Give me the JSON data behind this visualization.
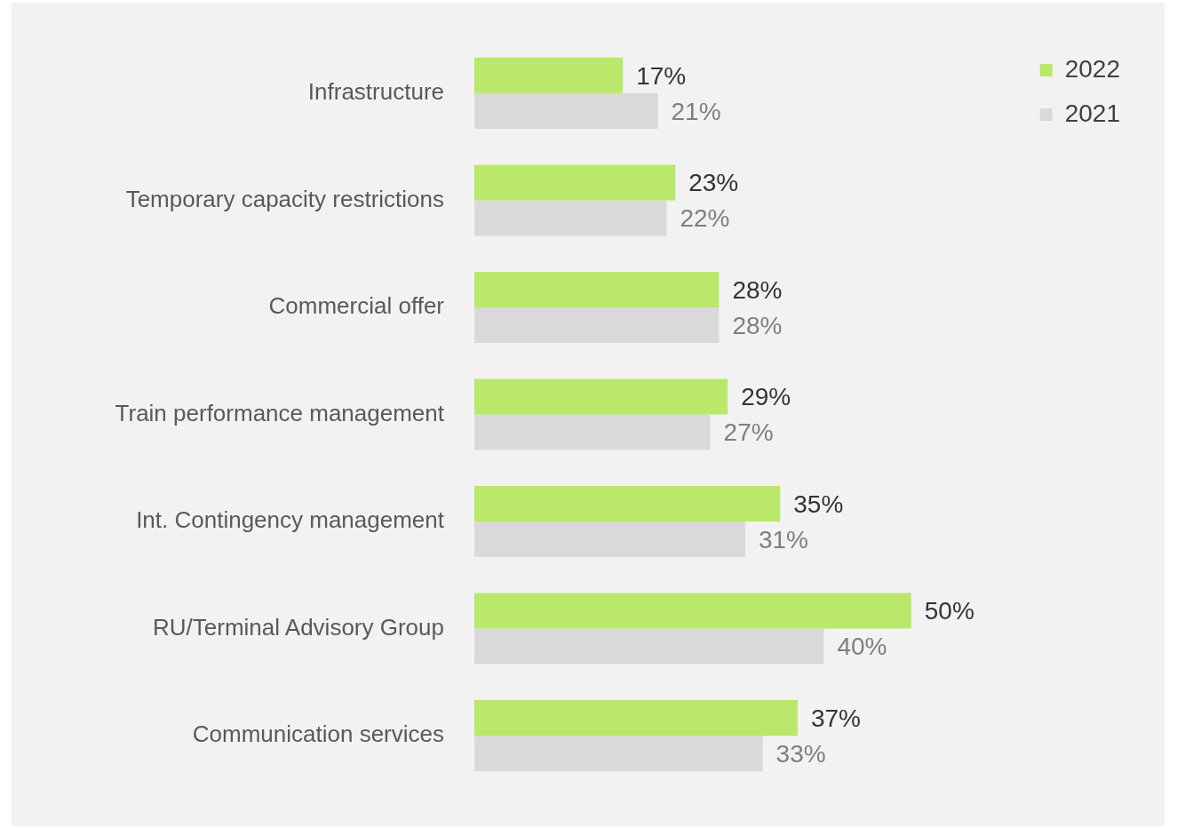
{
  "chart_data": {
    "type": "bar",
    "orientation": "horizontal",
    "categories": [
      "Infrastructure",
      "Temporary capacity restrictions",
      "Commercial offer",
      "Train performance management",
      "Int. Contingency management",
      "RU/Terminal Advisory Group",
      "Communication services"
    ],
    "series": [
      {
        "name": "2022",
        "color": "#b9e86b",
        "values": [
          17,
          23,
          28,
          29,
          35,
          50,
          37
        ],
        "value_labels": [
          "17%",
          "23%",
          "28%",
          "29%",
          "35%",
          "50%",
          "37%"
        ]
      },
      {
        "name": "2021",
        "color": "#d9d9d9",
        "values": [
          21,
          22,
          28,
          27,
          31,
          40,
          33
        ],
        "value_labels": [
          "21%",
          "22%",
          "28%",
          "27%",
          "31%",
          "40%",
          "33%"
        ]
      }
    ],
    "legend": "top right",
    "grid": false
  }
}
